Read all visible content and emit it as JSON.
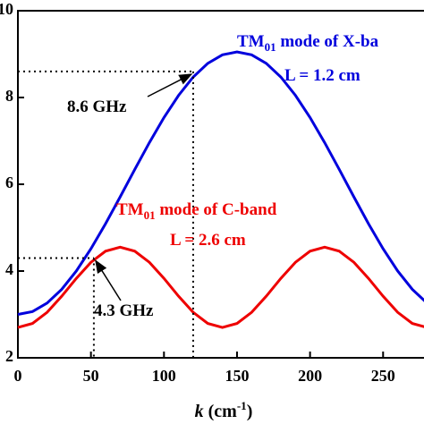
{
  "chart_data": {
    "type": "line",
    "x_label": {
      "italic": "k",
      "text": " (cm",
      "sup": "-1",
      "close": ")"
    },
    "x": [
      0,
      10,
      20,
      30,
      40,
      50,
      60,
      70,
      80,
      90,
      100,
      110,
      120,
      130,
      140,
      150,
      160,
      170,
      180,
      190,
      200,
      210,
      220,
      230,
      240,
      250,
      260,
      270,
      280
    ],
    "series": [
      {
        "name": "X-band",
        "color": "#0000dd",
        "values": [
          3.0,
          3.066,
          3.262,
          3.578,
          4.001,
          4.513,
          5.09,
          5.709,
          6.341,
          6.96,
          7.538,
          8.049,
          8.472,
          8.788,
          8.984,
          9.05,
          8.984,
          8.788,
          8.472,
          8.049,
          7.538,
          6.96,
          6.341,
          5.709,
          5.09,
          4.513,
          4.001,
          3.578,
          3.262
        ]
      },
      {
        "name": "C-band",
        "color": "#ee0000",
        "values": [
          2.7,
          2.792,
          3.048,
          3.419,
          3.831,
          4.202,
          4.458,
          4.55,
          4.458,
          4.202,
          3.831,
          3.419,
          3.048,
          2.792,
          2.7,
          2.792,
          3.048,
          3.419,
          3.831,
          4.202,
          4.458,
          4.55,
          4.458,
          4.202,
          3.831,
          3.419,
          3.048,
          2.792,
          2.7
        ]
      }
    ],
    "xlim": [
      0,
      278
    ],
    "ylim": [
      2,
      10
    ],
    "xticks": [
      0,
      50,
      100,
      150,
      200,
      250
    ],
    "yticks": [
      2,
      4,
      6,
      8,
      10
    ],
    "annotations": [
      {
        "main": "TM",
        "sub": "01",
        "rest": " mode of X-ba",
        "color": "#0000dd"
      },
      {
        "text": "L = 1.2 cm",
        "color": "#0000dd"
      },
      {
        "text": "8.6 GHz",
        "x": 120,
        "y": 8.6
      },
      {
        "main": "TM",
        "sub": "01",
        "rest": " mode of C-band",
        "color": "#ee0000"
      },
      {
        "text": "L = 2.6 cm",
        "color": "#ee0000"
      },
      {
        "text": "4.3 GHz",
        "x": 52,
        "y": 4.3
      }
    ]
  }
}
